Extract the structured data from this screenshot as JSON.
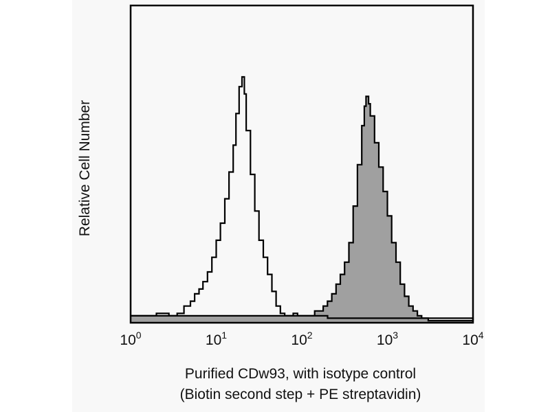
{
  "chart_data": {
    "type": "area",
    "xscale": "log",
    "xlim": [
      1,
      10000
    ],
    "ylim": [
      0,
      1
    ],
    "grid": false,
    "legend": "none",
    "ylabel": "Relative Cell Number",
    "xlabel_lines": [
      "Purified CDw93, with isotype control",
      "(Biotin second step + PE streptavidin)"
    ],
    "xticks": [
      {
        "base": "10",
        "exp": "0",
        "value": 1
      },
      {
        "base": "10",
        "exp": "1",
        "value": 10
      },
      {
        "base": "10",
        "exp": "2",
        "value": 100
      },
      {
        "base": "10",
        "exp": "3",
        "value": 1000
      },
      {
        "base": "10",
        "exp": "4",
        "value": 10000
      }
    ],
    "series": [
      {
        "style": "open-outline",
        "color": "#000000",
        "x": [
          1.0,
          1.5,
          2.0,
          2.8,
          3.5,
          4.2,
          5.0,
          5.6,
          6.3,
          7.0,
          7.9,
          8.9,
          10.0,
          11.2,
          12.6,
          14.1,
          15.8,
          17.0,
          18.5,
          20.0,
          21.3,
          22.4,
          25.1,
          28.2,
          31.6,
          35.5,
          39.8,
          44.7,
          50.1,
          56.2,
          63.1,
          70.8,
          79.4,
          89.1,
          100,
          120,
          200,
          400,
          1000,
          3000,
          10000
        ],
        "y": [
          0.02,
          0.02,
          0.03,
          0.02,
          0.03,
          0.06,
          0.08,
          0.11,
          0.13,
          0.16,
          0.2,
          0.26,
          0.33,
          0.4,
          0.5,
          0.61,
          0.72,
          0.85,
          0.96,
          1.0,
          0.93,
          0.78,
          0.6,
          0.45,
          0.33,
          0.26,
          0.19,
          0.12,
          0.06,
          0.03,
          0.02,
          0.02,
          0.03,
          0.02,
          0.02,
          0.02,
          0.01,
          0.01,
          0.01,
          0.01,
          0.0
        ]
      },
      {
        "style": "filled",
        "color": "#a0a0a0",
        "x": [
          1.0,
          10.0,
          50.0,
          100.0,
          141.3,
          177.8,
          199.5,
          223.9,
          251.2,
          281.8,
          316.2,
          354.8,
          398.1,
          446.7,
          501.2,
          537.0,
          562.3,
          603.0,
          631.0,
          707.9,
          794.3,
          891.3,
          1000,
          1122,
          1259,
          1413,
          1585,
          1778,
          1995,
          2239,
          2512,
          3000,
          10000
        ],
        "y": [
          0.02,
          0.02,
          0.02,
          0.02,
          0.04,
          0.06,
          0.08,
          0.11,
          0.15,
          0.19,
          0.24,
          0.32,
          0.47,
          0.64,
          0.8,
          0.88,
          0.92,
          0.89,
          0.84,
          0.73,
          0.63,
          0.53,
          0.43,
          0.32,
          0.24,
          0.15,
          0.1,
          0.06,
          0.04,
          0.02,
          0.01,
          0.0,
          0.0
        ]
      }
    ]
  }
}
